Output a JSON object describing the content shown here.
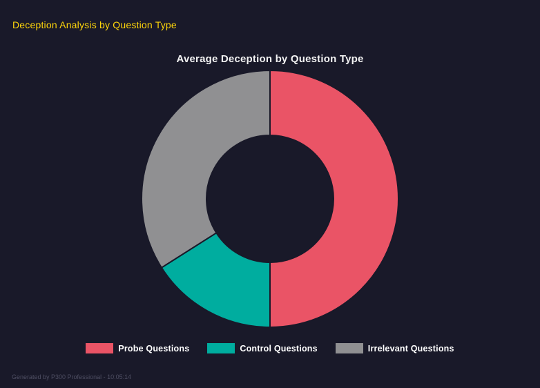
{
  "page": {
    "header": "Deception Analysis by Question Type",
    "footer": "Generated by P300 Professional - 10:05:14"
  },
  "chart_data": {
    "type": "pie",
    "variant": "doughnut",
    "title": "Average Deception by Question Type",
    "categories": [
      "Probe Questions",
      "Control Questions",
      "Irrelevant Questions"
    ],
    "values": [
      50,
      16,
      34
    ],
    "values_unit": "percent_share_of_ring",
    "colors": [
      "#ea5466",
      "#00ad9f",
      "#909092"
    ],
    "legend_position": "bottom",
    "hole_ratio": 0.49,
    "start_angle_deg": 0,
    "direction": "clockwise"
  },
  "colors": {
    "background": "#191929",
    "header_text": "#ffd60a",
    "chart_title_text": "#f2f2f2",
    "legend_text": "#ffffff",
    "footer_text": "#4e4e62"
  }
}
